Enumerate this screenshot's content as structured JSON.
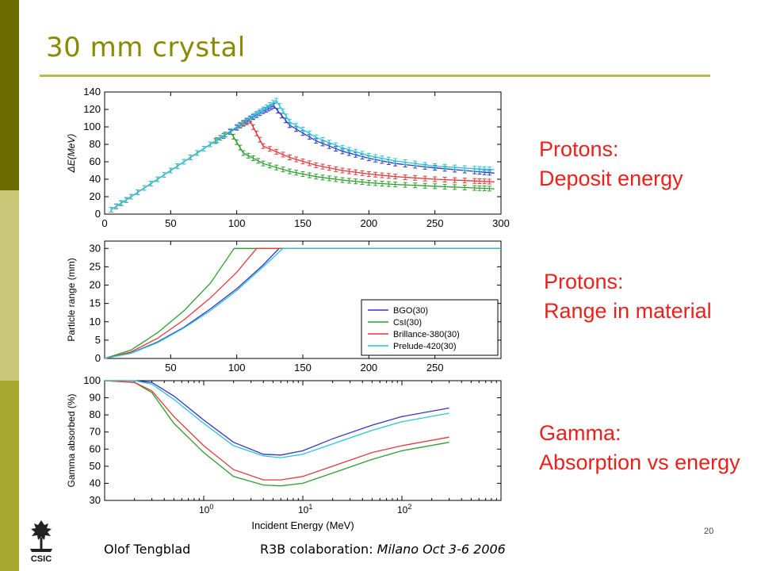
{
  "slide": {
    "title": "30 mm crystal",
    "captions": [
      {
        "line1": "Protons:",
        "line2": "Deposit energy"
      },
      {
        "line1": "Protons:",
        "line2": "Range in material"
      },
      {
        "line1": "Gamma:",
        "line2": "Absorption vs energy"
      }
    ],
    "footer": {
      "author": "Olof Tengblad",
      "event_prefix": "R3B colaboration: ",
      "event_location": "Milano  Oct 3-6  2006"
    },
    "page_number": "20",
    "logo_text": "CSIC"
  },
  "chart_data": [
    {
      "type": "line",
      "ylabel": "ΔE(MeV)",
      "xlim": [
        0,
        300
      ],
      "ylim": [
        0,
        140
      ],
      "xticks": [
        0,
        50,
        100,
        150,
        200,
        250,
        300
      ],
      "yticks": [
        0,
        20,
        40,
        60,
        80,
        100,
        120,
        140
      ],
      "error_bars": true,
      "series": [
        {
          "name": "BGO(30)",
          "color": "#3434c8",
          "x": [
            5,
            20,
            40,
            60,
            80,
            100,
            110,
            120,
            128,
            140,
            160,
            180,
            200,
            220,
            250,
            280,
            295
          ],
          "y": [
            5,
            20,
            40,
            60,
            80,
            99,
            109,
            118,
            124,
            102,
            84,
            72,
            64,
            58,
            53,
            49,
            47
          ]
        },
        {
          "name": "CsI(30)",
          "color": "#2e9e2e",
          "x": [
            5,
            20,
            40,
            60,
            80,
            95,
            105,
            120,
            140,
            160,
            180,
            200,
            220,
            250,
            280,
            295
          ],
          "y": [
            5,
            20,
            40,
            60,
            80,
            95,
            70,
            58,
            49,
            43,
            39,
            36,
            34,
            32,
            30,
            29
          ]
        },
        {
          "name": "Brillance-380(30)",
          "color": "#e23a3a",
          "x": [
            5,
            20,
            40,
            60,
            80,
            100,
            110,
            120,
            140,
            160,
            180,
            200,
            220,
            250,
            280,
            295
          ],
          "y": [
            5,
            20,
            40,
            60,
            80,
            100,
            107,
            78,
            65,
            56,
            50,
            46,
            43,
            40,
            38,
            37
          ]
        },
        {
          "name": "Prelude-420(30)",
          "color": "#2cc4d4",
          "x": [
            5,
            20,
            40,
            60,
            80,
            100,
            110,
            120,
            130,
            140,
            160,
            180,
            200,
            220,
            250,
            280,
            295
          ],
          "y": [
            5,
            20,
            40,
            60,
            80,
            100,
            110,
            120,
            130,
            106,
            88,
            76,
            67,
            61,
            55,
            52,
            51
          ]
        }
      ]
    },
    {
      "type": "line",
      "ylabel": "Particle range (mm)",
      "xlim": [
        0,
        300
      ],
      "ylim": [
        0,
        32
      ],
      "xticks": [
        50,
        100,
        150,
        200,
        250
      ],
      "yticks": [
        0,
        5,
        10,
        15,
        20,
        25,
        30
      ],
      "legend": "lower-right",
      "series": [
        {
          "name": "BGO(30)",
          "color": "#3434c8",
          "x": [
            0,
            20,
            40,
            60,
            80,
            100,
            120,
            132,
            300
          ],
          "y": [
            0,
            1.5,
            4.5,
            8.5,
            13.5,
            19,
            25.5,
            30,
            30
          ]
        },
        {
          "name": "CsI(30)",
          "color": "#2e9e2e",
          "x": [
            0,
            20,
            40,
            60,
            80,
            98,
            300
          ],
          "y": [
            0,
            2.3,
            7,
            13,
            20.5,
            30,
            30
          ]
        },
        {
          "name": "Brillance-380(30)",
          "color": "#e23a3a",
          "x": [
            0,
            20,
            40,
            60,
            80,
            100,
            115,
            300
          ],
          "y": [
            0,
            1.8,
            5.5,
            10.5,
            16.5,
            23.5,
            30,
            30
          ]
        },
        {
          "name": "Prelude-420(30)",
          "color": "#2cc4d4",
          "x": [
            0,
            20,
            40,
            60,
            80,
            100,
            120,
            135,
            300
          ],
          "y": [
            0,
            1.4,
            4.3,
            8.3,
            13,
            18.5,
            25,
            30,
            30
          ]
        }
      ]
    },
    {
      "type": "line",
      "xlabel": "Incident Energy (MeV)",
      "ylabel": "Gamma absorbed (%)",
      "xscale": "log",
      "xlim": [
        0.1,
        1000
      ],
      "ylim": [
        30,
        100
      ],
      "xticks": [
        "10^0",
        "10^1",
        "10^2"
      ],
      "yticks": [
        30,
        40,
        50,
        60,
        70,
        80,
        90,
        100
      ],
      "series": [
        {
          "name": "BGO(30)",
          "color": "#3434c8",
          "x": [
            0.1,
            0.2,
            0.3,
            0.5,
            1,
            2,
            4,
            6,
            10,
            20,
            50,
            100,
            300
          ],
          "y": [
            100,
            100,
            99,
            91,
            77,
            64,
            57,
            56.5,
            59,
            66,
            74,
            79,
            84
          ]
        },
        {
          "name": "CsI(30)",
          "color": "#2e9e2e",
          "x": [
            0.1,
            0.2,
            0.3,
            0.5,
            1,
            2,
            4,
            6,
            10,
            20,
            50,
            100,
            300
          ],
          "y": [
            100,
            99,
            93,
            75,
            58,
            44,
            39,
            38.5,
            40,
            46,
            54,
            59,
            64
          ]
        },
        {
          "name": "Brillance-380(30)",
          "color": "#e23a3a",
          "x": [
            0.1,
            0.2,
            0.3,
            0.5,
            1,
            2,
            4,
            6,
            10,
            20,
            50,
            100,
            300
          ],
          "y": [
            100,
            99,
            94,
            79,
            62,
            48,
            42,
            42,
            44,
            50,
            58,
            62,
            67
          ]
        },
        {
          "name": "Prelude-420(30)",
          "color": "#2cc4d4",
          "x": [
            0.1,
            0.2,
            0.3,
            0.5,
            1,
            2,
            4,
            6,
            10,
            20,
            50,
            100,
            300
          ],
          "y": [
            100,
            100,
            98,
            89,
            75,
            62,
            56,
            55,
            57,
            63,
            71,
            76,
            81
          ]
        }
      ]
    }
  ]
}
